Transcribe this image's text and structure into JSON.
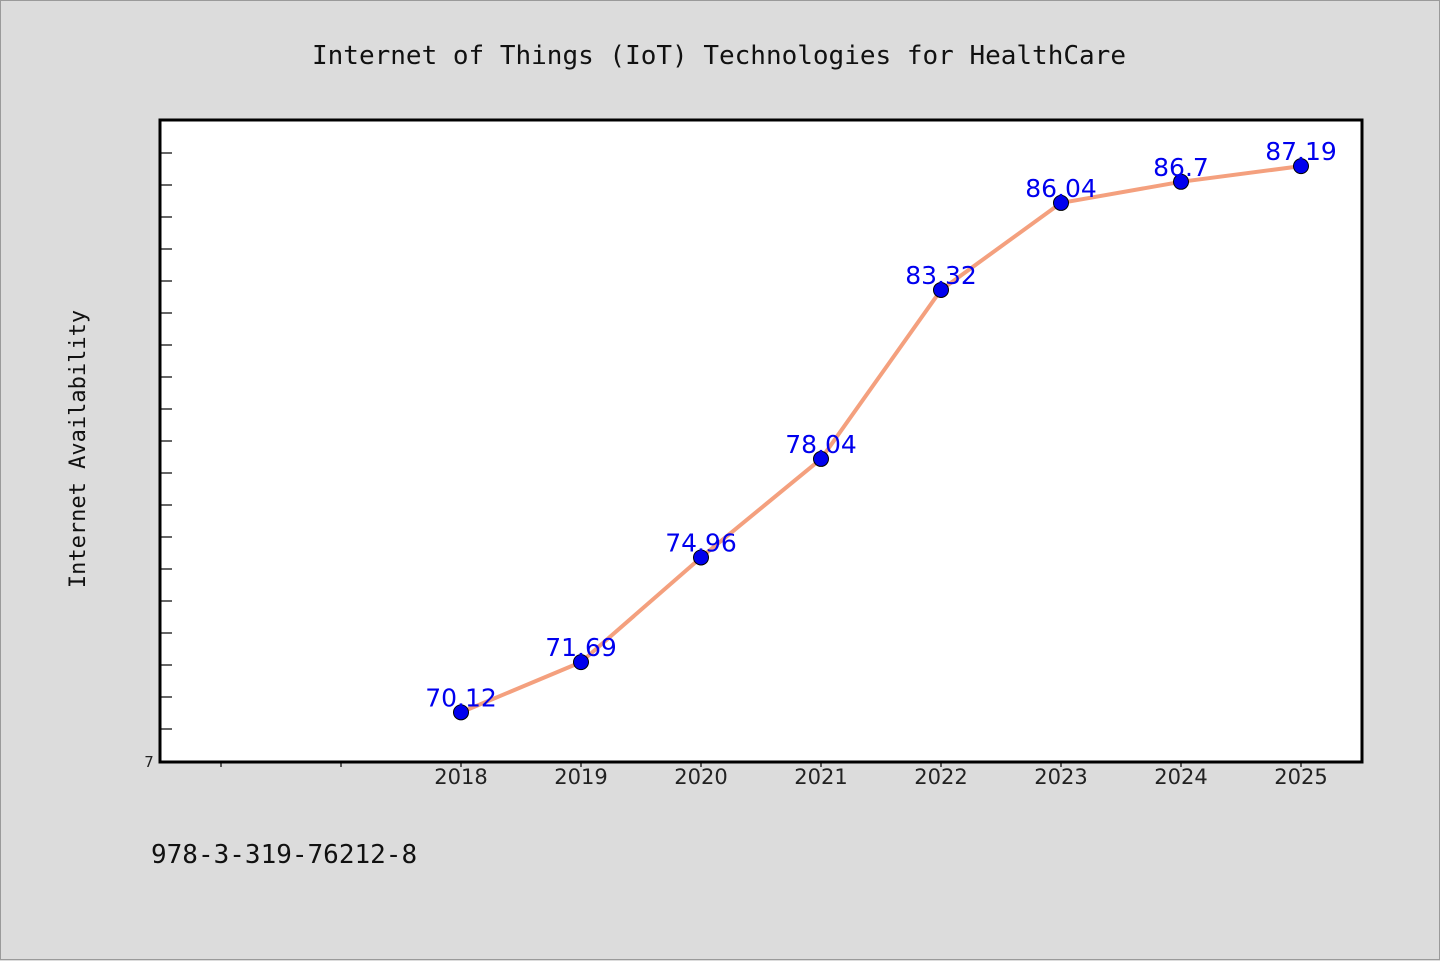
{
  "chart_data": {
    "type": "line",
    "title": "Internet of Things (IoT) Technologies for HealthCare",
    "ylabel": "Internet Availability",
    "xlabel": "",
    "categories": [
      "2018",
      "2019",
      "2020",
      "2021",
      "2022",
      "2023",
      "2024",
      "2025"
    ],
    "series": [
      {
        "values": [
          70.12,
          71.69,
          74.96,
          78.04,
          83.32,
          86.04,
          86.7,
          87.19
        ]
      }
    ],
    "data_labels": [
      "70.12",
      "71.69",
      "74.96",
      "78.04",
      "83.32",
      "86.04",
      "86.7",
      "87.19"
    ],
    "ylim": [
      68.6,
      88.6
    ],
    "y_tick_label": "7",
    "grid": false,
    "colors": {
      "line": "#f4a07e",
      "marker": "#0000ee",
      "data_label": "#0000ee",
      "background": "#dcdcdc",
      "plot_bg": "#ffffff"
    }
  },
  "footer": {
    "isbn": "978-3-319-76212-8"
  }
}
